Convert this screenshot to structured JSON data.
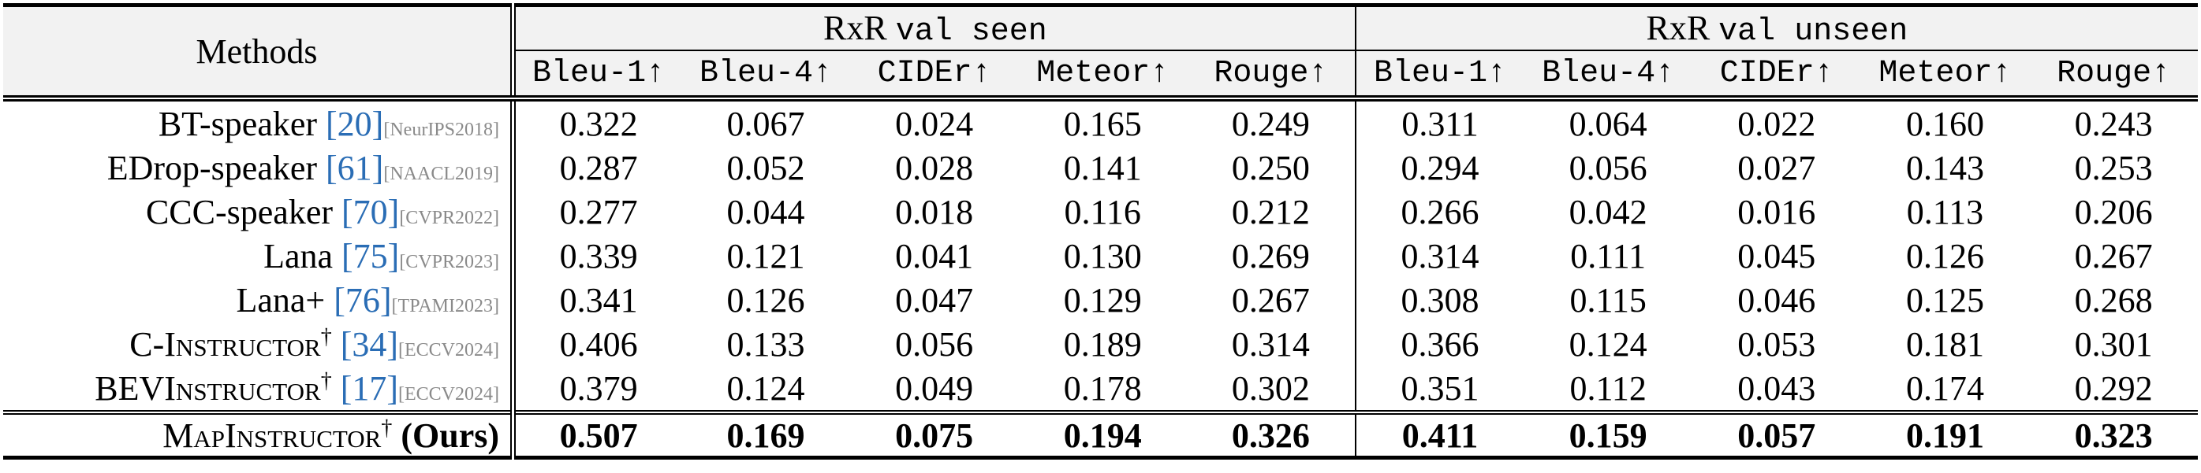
{
  "header": {
    "methods": "Methods",
    "groups": [
      {
        "name": "RxR",
        "split": "val seen"
      },
      {
        "name": "RxR",
        "split": "val unseen"
      }
    ],
    "columns": [
      "Bleu-1↑",
      "Bleu-4↑",
      "CIDEr↑",
      "Meteor↑",
      "Rouge↑",
      "Bleu-1↑",
      "Bleu-4↑",
      "CIDEr↑",
      "Meteor↑",
      "Rouge↑"
    ]
  },
  "rows": [
    {
      "method": "BT-speaker",
      "ref": "[20]",
      "venue": "[NeurIPS2018]",
      "values": [
        "0.322",
        "0.067",
        "0.024",
        "0.165",
        "0.249",
        "0.311",
        "0.064",
        "0.022",
        "0.160",
        "0.243"
      ]
    },
    {
      "method": "EDrop-speaker",
      "ref": "[61]",
      "venue": "[NAACL2019]",
      "values": [
        "0.287",
        "0.052",
        "0.028",
        "0.141",
        "0.250",
        "0.294",
        "0.056",
        "0.027",
        "0.143",
        "0.253"
      ]
    },
    {
      "method": "CCC-speaker",
      "ref": "[70]",
      "venue": "[CVPR2022]",
      "values": [
        "0.277",
        "0.044",
        "0.018",
        "0.116",
        "0.212",
        "0.266",
        "0.042",
        "0.016",
        "0.113",
        "0.206"
      ]
    },
    {
      "method": "Lana",
      "ref": "[75]",
      "venue": "[CVPR2023]",
      "values": [
        "0.339",
        "0.121",
        "0.041",
        "0.130",
        "0.269",
        "0.314",
        "0.111",
        "0.045",
        "0.126",
        "0.267"
      ]
    },
    {
      "method": "Lana+",
      "ref": "[76]",
      "venue": "[TPAMI2023]",
      "values": [
        "0.341",
        "0.126",
        "0.047",
        "0.129",
        "0.267",
        "0.308",
        "0.115",
        "0.046",
        "0.125",
        "0.268"
      ]
    },
    {
      "method": "C-Instructor",
      "mark": "†",
      "ref": "[34]",
      "venue": "[ECCV2024]",
      "values": [
        "0.406",
        "0.133",
        "0.056",
        "0.189",
        "0.314",
        "0.366",
        "0.124",
        "0.053",
        "0.181",
        "0.301"
      ]
    },
    {
      "method": "BEVInstructor",
      "mark": "†",
      "ref": "[17]",
      "venue": "[ECCV2024]",
      "values": [
        "0.379",
        "0.124",
        "0.049",
        "0.178",
        "0.302",
        "0.351",
        "0.112",
        "0.043",
        "0.174",
        "0.292"
      ]
    },
    {
      "method": "MapInstructor",
      "mark": "†",
      "suffix": "(Ours)",
      "values": [
        "0.507",
        "0.169",
        "0.075",
        "0.194",
        "0.326",
        "0.411",
        "0.159",
        "0.057",
        "0.191",
        "0.323"
      ]
    }
  ]
}
